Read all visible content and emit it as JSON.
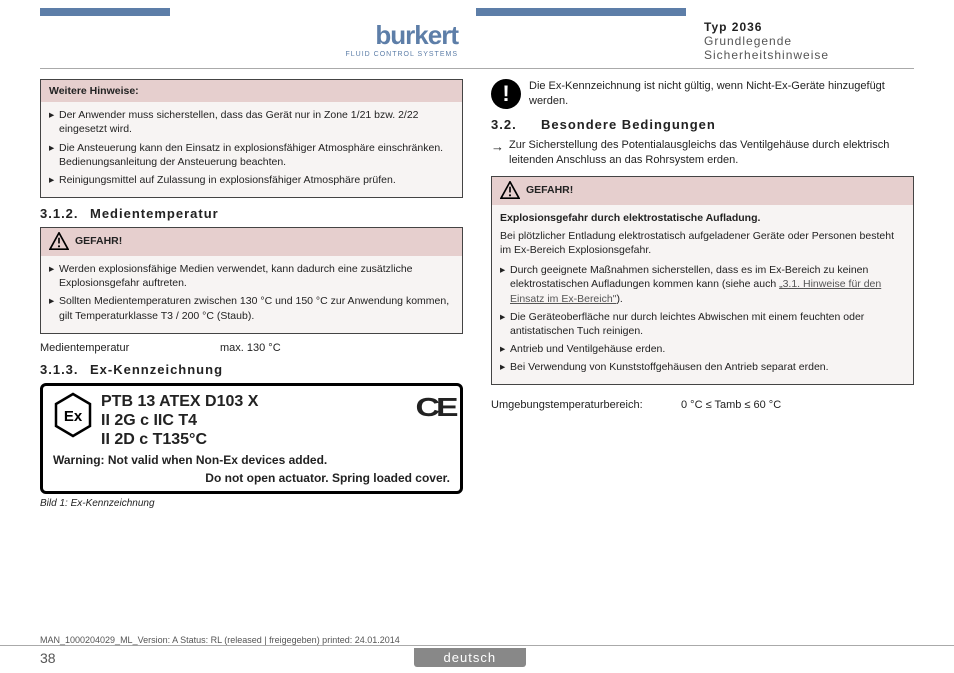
{
  "header": {
    "typ": "Typ 2036",
    "sub": "Grundlegende Sicherheitshinweise",
    "logo": "burkert",
    "logoSub": "FLUID CONTROL SYSTEMS"
  },
  "boxLeft": {
    "title": "Weitere Hinweise:",
    "items": [
      "Der Anwender muss sicherstellen, dass das Gerät nur in Zone 1/21 bzw. 2/22 eingesetzt wird.",
      "Die Ansteuerung kann den Einsatz in explosionsfähiger Atmosphäre einschränken. Bedienungsanleitung der Ansteuerung beachten.",
      "Reinigungsmittel auf Zulassung in explosionsfähiger Atmosphäre prüfen."
    ]
  },
  "s312": {
    "num": "3.1.2.",
    "title": "Medientemperatur"
  },
  "gefahr": "GEFAHR!",
  "box312": {
    "items": [
      "Werden explosionsfähige Medien verwendet, kann dadurch eine zusätzliche Explosionsgefahr auftreten.",
      "Sollten Medientemperaturen zwischen 130 °C und 150 °C zur Anwendung kommen, gilt Temperaturklasse T3 / 200 °C (Staub)."
    ]
  },
  "spec": {
    "l": "Medientemperatur",
    "v": "max. 130 °C"
  },
  "s313": {
    "num": "3.1.3.",
    "title": "Ex-Kennzeichnung"
  },
  "plate": {
    "l1": "PTB 13 ATEX D103 X",
    "l2": "II 2G c IIC T4",
    "l3": "II 2D c T135°C",
    "warn": "Warning: Not valid when Non-Ex devices added.",
    "sub": "Do not open actuator. Spring loaded cover."
  },
  "caption": "Bild 1:    Ex-Kennzeichnung",
  "info": "Die Ex-Kennzeichnung ist nicht gültig, wenn Nicht-Ex-Geräte hinzugefügt werden.",
  "s32": {
    "num": "3.2.",
    "title": "Besondere Bedingungen"
  },
  "arrow32": "Zur Sicherstellung des Potentialausgleichs das Ventilgehäuse durch elektrisch leitenden Anschluss an das Rohrsystem erden.",
  "box32": {
    "head": "Explosionsgefahr durch elektrostatische Aufladung.",
    "sub": "Bei plötzlicher Entladung elektrostatisch aufgeladener Geräte oder Personen besteht im Ex-Bereich Explosionsgefahr.",
    "items": [
      {
        "t": "Durch geeignete Maßnahmen sicherstellen, dass es im Ex-Bereich zu keinen elektrostatischen Aufladungen kommen kann (siehe auch ",
        "link": "„3.1. Hinweise für den Einsatz im Ex-Bereich\"",
        "t2": ")."
      },
      {
        "t": "Die Geräteoberfläche nur durch leichtes Abwischen mit einem feuchten oder antistatischen Tuch reinigen."
      },
      {
        "t": "Antrieb und Ventilgehäuse erden."
      },
      {
        "t": "Bei Verwendung von Kunststoffgehäusen den Antrieb separat erden."
      }
    ]
  },
  "amb": {
    "l": "Umgebungstemperaturbereich:",
    "v": "0 °C ≤ Tamb ≤ 60 °C"
  },
  "footer": {
    "man": "MAN_1000204029_ML_Version: A Status: RL (released | freigegeben)  printed: 24.01.2014",
    "page": "38",
    "lang": "deutsch"
  },
  "colors": {
    "brand": "#5d7ea8",
    "boxBg": "#f7f4f3",
    "boxHdr": "#e6cfce"
  }
}
